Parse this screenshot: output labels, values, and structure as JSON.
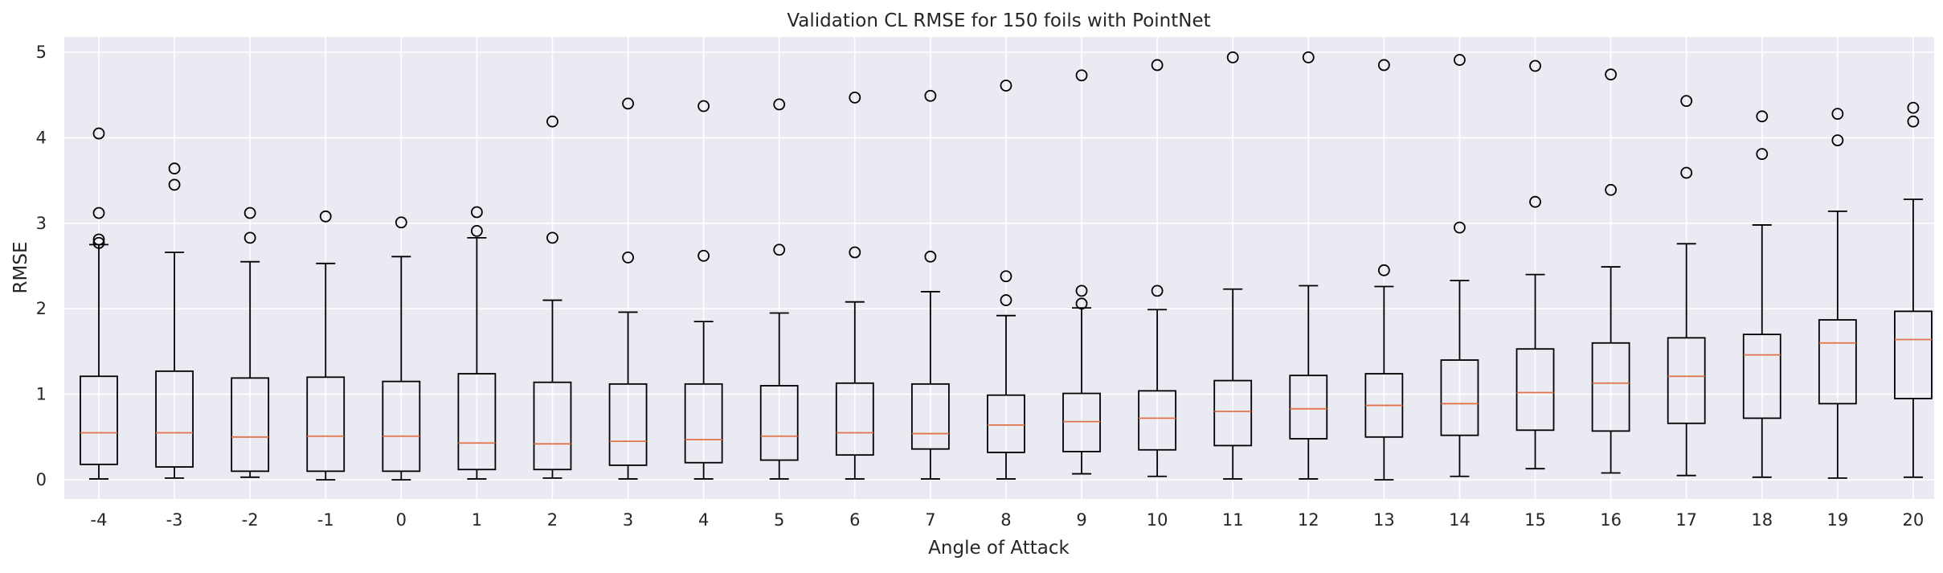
{
  "chart_data": {
    "type": "box",
    "title": "Validation CL RMSE for 150 foils with PointNet",
    "xlabel": "Angle of Attack",
    "ylabel": "RMSE",
    "ylim": [
      -0.23,
      5.2
    ],
    "yticks": [
      0,
      1,
      2,
      3,
      4,
      5
    ],
    "grid": true,
    "colors": {
      "background": "#eaeaf2",
      "grid": "#ffffff",
      "box": "#000000",
      "median": "#e2724a"
    },
    "boxes": [
      {
        "category": "-4",
        "whisker_low": 0.01,
        "q1": 0.18,
        "median": 0.55,
        "q3": 1.21,
        "whisker_high": 2.75,
        "fliers": [
          4.05,
          3.12,
          2.81,
          2.77
        ]
      },
      {
        "category": "-3",
        "whisker_low": 0.02,
        "q1": 0.15,
        "median": 0.55,
        "q3": 1.27,
        "whisker_high": 2.66,
        "fliers": [
          3.64,
          3.45
        ]
      },
      {
        "category": "-2",
        "whisker_low": 0.03,
        "q1": 0.1,
        "median": 0.5,
        "q3": 1.19,
        "whisker_high": 2.55,
        "fliers": [
          3.12,
          2.83
        ]
      },
      {
        "category": "-1",
        "whisker_low": 0.0,
        "q1": 0.1,
        "median": 0.51,
        "q3": 1.2,
        "whisker_high": 2.53,
        "fliers": [
          3.08
        ]
      },
      {
        "category": "0",
        "whisker_low": 0.0,
        "q1": 0.1,
        "median": 0.51,
        "q3": 1.15,
        "whisker_high": 2.61,
        "fliers": [
          3.01
        ]
      },
      {
        "category": "1",
        "whisker_low": 0.01,
        "q1": 0.12,
        "median": 0.43,
        "q3": 1.24,
        "whisker_high": 2.83,
        "fliers": [
          3.13,
          2.91
        ]
      },
      {
        "category": "2",
        "whisker_low": 0.02,
        "q1": 0.12,
        "median": 0.42,
        "q3": 1.14,
        "whisker_high": 2.1,
        "fliers": [
          4.19,
          2.83
        ]
      },
      {
        "category": "3",
        "whisker_low": 0.01,
        "q1": 0.17,
        "median": 0.45,
        "q3": 1.12,
        "whisker_high": 1.96,
        "fliers": [
          4.4,
          2.6
        ]
      },
      {
        "category": "4",
        "whisker_low": 0.01,
        "q1": 0.2,
        "median": 0.47,
        "q3": 1.12,
        "whisker_high": 1.85,
        "fliers": [
          4.37,
          2.62
        ]
      },
      {
        "category": "5",
        "whisker_low": 0.01,
        "q1": 0.23,
        "median": 0.51,
        "q3": 1.1,
        "whisker_high": 1.95,
        "fliers": [
          4.39,
          2.69
        ]
      },
      {
        "category": "6",
        "whisker_low": 0.01,
        "q1": 0.29,
        "median": 0.55,
        "q3": 1.13,
        "whisker_high": 2.08,
        "fliers": [
          4.47,
          2.66
        ]
      },
      {
        "category": "7",
        "whisker_low": 0.01,
        "q1": 0.36,
        "median": 0.54,
        "q3": 1.12,
        "whisker_high": 2.2,
        "fliers": [
          4.49,
          2.61
        ]
      },
      {
        "category": "8",
        "whisker_low": 0.01,
        "q1": 0.32,
        "median": 0.64,
        "q3": 0.99,
        "whisker_high": 1.92,
        "fliers": [
          4.61,
          2.38,
          2.1
        ]
      },
      {
        "category": "9",
        "whisker_low": 0.07,
        "q1": 0.33,
        "median": 0.68,
        "q3": 1.01,
        "whisker_high": 2.01,
        "fliers": [
          4.73,
          2.21,
          2.06
        ]
      },
      {
        "category": "10",
        "whisker_low": 0.04,
        "q1": 0.35,
        "median": 0.72,
        "q3": 1.04,
        "whisker_high": 1.99,
        "fliers": [
          4.85,
          2.21
        ]
      },
      {
        "category": "11",
        "whisker_low": 0.01,
        "q1": 0.4,
        "median": 0.8,
        "q3": 1.16,
        "whisker_high": 2.23,
        "fliers": [
          4.94
        ]
      },
      {
        "category": "12",
        "whisker_low": 0.01,
        "q1": 0.48,
        "median": 0.83,
        "q3": 1.22,
        "whisker_high": 2.27,
        "fliers": [
          4.94
        ]
      },
      {
        "category": "13",
        "whisker_low": 0.0,
        "q1": 0.5,
        "median": 0.87,
        "q3": 1.24,
        "whisker_high": 2.26,
        "fliers": [
          4.85,
          2.45
        ]
      },
      {
        "category": "14",
        "whisker_low": 0.04,
        "q1": 0.52,
        "median": 0.89,
        "q3": 1.4,
        "whisker_high": 2.33,
        "fliers": [
          4.91,
          2.95
        ]
      },
      {
        "category": "15",
        "whisker_low": 0.13,
        "q1": 0.58,
        "median": 1.02,
        "q3": 1.53,
        "whisker_high": 2.4,
        "fliers": [
          4.84,
          3.25
        ]
      },
      {
        "category": "16",
        "whisker_low": 0.08,
        "q1": 0.57,
        "median": 1.13,
        "q3": 1.6,
        "whisker_high": 2.49,
        "fliers": [
          4.74,
          3.39
        ]
      },
      {
        "category": "17",
        "whisker_low": 0.05,
        "q1": 0.66,
        "median": 1.21,
        "q3": 1.66,
        "whisker_high": 2.76,
        "fliers": [
          4.43,
          3.59
        ]
      },
      {
        "category": "18",
        "whisker_low": 0.03,
        "q1": 0.72,
        "median": 1.46,
        "q3": 1.7,
        "whisker_high": 2.98,
        "fliers": [
          4.25,
          3.81
        ]
      },
      {
        "category": "19",
        "whisker_low": 0.02,
        "q1": 0.89,
        "median": 1.6,
        "q3": 1.87,
        "whisker_high": 3.14,
        "fliers": [
          4.28,
          3.97
        ]
      },
      {
        "category": "20",
        "whisker_low": 0.03,
        "q1": 0.95,
        "median": 1.64,
        "q3": 1.97,
        "whisker_high": 3.28,
        "fliers": [
          4.35,
          4.19
        ]
      }
    ]
  }
}
